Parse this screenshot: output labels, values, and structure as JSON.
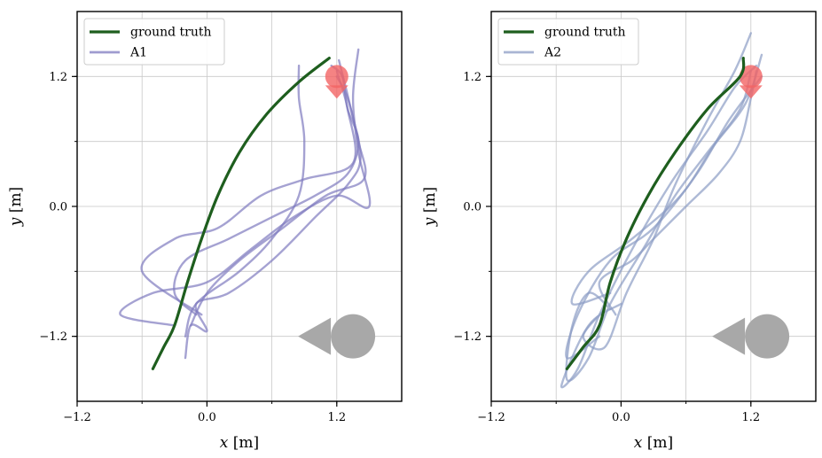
{
  "chart_data": [
    {
      "type": "line",
      "panel": "left",
      "xlabel": {
        "var": "x",
        "unit": "[m]"
      },
      "ylabel": {
        "var": "y",
        "unit": "[m]"
      },
      "xlim": [
        -1.2,
        1.8
      ],
      "ylim": [
        -1.8,
        1.8
      ],
      "xticks": [
        -1.2,
        0.0,
        1.2
      ],
      "xtick_labels": [
        "−1.2",
        "0.0",
        "1.2"
      ],
      "yticks": [
        -1.2,
        0.0,
        1.2
      ],
      "ytick_labels": [
        "−1.2",
        "0.0",
        "1.2"
      ],
      "grid": true,
      "legend": {
        "position": "top-left",
        "entries": [
          "ground truth",
          "A1"
        ]
      },
      "colors": {
        "ground_truth": "#1e5e1e",
        "agent": "#7f7abf",
        "goal": "#f26464",
        "robot": "#a8a8a8"
      },
      "goal_marker": {
        "x": 1.2,
        "y": 1.2
      },
      "robot_marker": {
        "x": 1.35,
        "y": -1.2
      },
      "series": [
        {
          "name": "ground truth",
          "role": "gt",
          "points": [
            [
              -0.5,
              -1.5
            ],
            [
              -0.4,
              -1.3
            ],
            [
              -0.3,
              -1.1
            ],
            [
              -0.18,
              -0.7
            ],
            [
              -0.05,
              -0.3
            ],
            [
              0.1,
              0.1
            ],
            [
              0.3,
              0.5
            ],
            [
              0.55,
              0.85
            ],
            [
              0.85,
              1.15
            ],
            [
              1.13,
              1.37
            ]
          ]
        },
        {
          "name": "A1",
          "role": "agent",
          "points": [
            [
              -0.1,
              -1.0
            ],
            [
              -0.3,
              -0.8
            ],
            [
              -0.2,
              -0.5
            ],
            [
              0.2,
              -0.3
            ],
            [
              0.6,
              -0.1
            ],
            [
              1.0,
              0.1
            ],
            [
              1.3,
              0.3
            ],
            [
              1.4,
              0.6
            ],
            [
              1.3,
              0.9
            ],
            [
              1.25,
              1.2
            ],
            [
              1.15,
              1.3
            ]
          ]
        },
        {
          "name": "A1",
          "role": "agent",
          "points": [
            [
              -0.15,
              -1.1
            ],
            [
              0.0,
              -0.8
            ],
            [
              0.3,
              -0.5
            ],
            [
              0.7,
              -0.2
            ],
            [
              1.1,
              0.1
            ],
            [
              1.45,
              0.25
            ],
            [
              1.4,
              0.6
            ],
            [
              1.3,
              1.0
            ],
            [
              1.2,
              1.2
            ]
          ]
        },
        {
          "name": "A1",
          "role": "agent",
          "points": [
            [
              -0.3,
              -1.1
            ],
            [
              -0.8,
              -1.0
            ],
            [
              -0.5,
              -0.8
            ],
            [
              0.0,
              -0.7
            ],
            [
              0.4,
              -0.4
            ],
            [
              0.8,
              -0.1
            ],
            [
              1.2,
              0.1
            ],
            [
              1.5,
              0.0
            ],
            [
              1.4,
              0.5
            ],
            [
              1.35,
              1.0
            ],
            [
              1.4,
              1.45
            ]
          ]
        },
        {
          "name": "A1",
          "role": "agent",
          "points": [
            [
              -0.05,
              -1.0
            ],
            [
              -0.6,
              -0.6
            ],
            [
              -0.3,
              -0.3
            ],
            [
              0.1,
              -0.2
            ],
            [
              0.5,
              0.1
            ],
            [
              0.9,
              0.25
            ],
            [
              1.35,
              0.4
            ],
            [
              1.3,
              0.9
            ],
            [
              1.2,
              1.25
            ]
          ]
        },
        {
          "name": "A1",
          "role": "agent",
          "points": [
            [
              -0.2,
              -1.4
            ],
            [
              -0.15,
              -1.1
            ],
            [
              0.0,
              -1.15
            ],
            [
              -0.1,
              -0.9
            ],
            [
              0.2,
              -0.8
            ],
            [
              0.6,
              -0.5
            ],
            [
              1.0,
              -0.1
            ],
            [
              1.3,
              0.2
            ],
            [
              1.42,
              0.45
            ],
            [
              1.33,
              0.9
            ],
            [
              1.22,
              1.35
            ]
          ]
        },
        {
          "name": "A1",
          "role": "agent",
          "points": [
            [
              -0.2,
              -1.2
            ],
            [
              -0.1,
              -0.9
            ],
            [
              0.3,
              -0.6
            ],
            [
              0.6,
              -0.3
            ],
            [
              0.85,
              0.1
            ],
            [
              0.9,
              0.6
            ],
            [
              0.85,
              1.0
            ],
            [
              0.85,
              1.3
            ]
          ]
        }
      ]
    },
    {
      "type": "line",
      "panel": "right",
      "xlabel": {
        "var": "x",
        "unit": "[m]"
      },
      "ylabel": {
        "var": "y",
        "unit": "[m]"
      },
      "xlim": [
        -1.2,
        1.8
      ],
      "ylim": [
        -1.8,
        1.8
      ],
      "xticks": [
        -1.2,
        0.0,
        1.2
      ],
      "xtick_labels": [
        "−1.2",
        "0.0",
        "1.2"
      ],
      "yticks": [
        -1.2,
        0.0,
        1.2
      ],
      "ytick_labels": [
        "−1.2",
        "0.0",
        "1.2"
      ],
      "grid": true,
      "legend": {
        "position": "top-left",
        "entries": [
          "ground truth",
          "A2"
        ]
      },
      "colors": {
        "ground_truth": "#1e5e1e",
        "agent": "#8c9cc4",
        "goal": "#f26464",
        "robot": "#a8a8a8"
      },
      "goal_marker": {
        "x": 1.2,
        "y": 1.2
      },
      "robot_marker": {
        "x": 1.35,
        "y": -1.2
      },
      "series": [
        {
          "name": "ground truth",
          "role": "gt",
          "points": [
            [
              -0.5,
              -1.5
            ],
            [
              -0.35,
              -1.3
            ],
            [
              -0.2,
              -1.1
            ],
            [
              -0.1,
              -0.7
            ],
            [
              0.05,
              -0.3
            ],
            [
              0.25,
              0.1
            ],
            [
              0.5,
              0.5
            ],
            [
              0.8,
              0.9
            ],
            [
              1.1,
              1.2
            ],
            [
              1.13,
              1.37
            ]
          ]
        },
        {
          "name": "A2",
          "role": "agent",
          "points": [
            [
              -0.1,
              -0.95
            ],
            [
              -0.3,
              -0.8
            ],
            [
              -0.45,
              -1.1
            ],
            [
              -0.5,
              -1.6
            ],
            [
              -0.3,
              -1.4
            ],
            [
              -0.1,
              -0.9
            ],
            [
              0.2,
              -0.4
            ],
            [
              0.5,
              0.1
            ],
            [
              0.8,
              0.5
            ],
            [
              1.1,
              0.9
            ],
            [
              1.2,
              1.25
            ]
          ]
        },
        {
          "name": "A2",
          "role": "agent",
          "points": [
            [
              -0.2,
              -1.2
            ],
            [
              -0.5,
              -1.4
            ],
            [
              -0.4,
              -1.0
            ],
            [
              -0.1,
              -0.5
            ],
            [
              0.3,
              -0.2
            ],
            [
              0.7,
              0.3
            ],
            [
              1.0,
              0.8
            ],
            [
              1.3,
              1.2
            ]
          ]
        },
        {
          "name": "A2",
          "role": "agent",
          "points": [
            [
              -0.1,
              -0.8
            ],
            [
              -0.45,
              -0.9
            ],
            [
              -0.3,
              -0.6
            ],
            [
              0.1,
              -0.3
            ],
            [
              0.55,
              0.1
            ],
            [
              0.85,
              0.55
            ],
            [
              1.15,
              0.95
            ],
            [
              1.3,
              1.4
            ]
          ]
        },
        {
          "name": "A2",
          "role": "agent",
          "points": [
            [
              0.0,
              -0.9
            ],
            [
              -0.3,
              -1.1
            ],
            [
              -0.55,
              -1.65
            ],
            [
              -0.4,
              -1.5
            ],
            [
              -0.2,
              -1.0
            ],
            [
              0.1,
              -0.4
            ],
            [
              0.45,
              0.2
            ],
            [
              0.8,
              0.7
            ],
            [
              1.05,
              1.1
            ],
            [
              1.25,
              1.3
            ]
          ]
        },
        {
          "name": "A2",
          "role": "agent",
          "points": [
            [
              -0.05,
              -1.0
            ],
            [
              -0.2,
              -0.7
            ],
            [
              0.1,
              -0.5
            ],
            [
              0.3,
              -0.3
            ],
            [
              0.6,
              0.0
            ],
            [
              0.9,
              0.3
            ],
            [
              1.1,
              0.6
            ],
            [
              1.2,
              1.0
            ],
            [
              1.25,
              1.25
            ]
          ]
        },
        {
          "name": "A2",
          "role": "agent",
          "points": [
            [
              -0.15,
              -0.95
            ],
            [
              -0.35,
              -1.2
            ],
            [
              -0.15,
              -1.3
            ],
            [
              0.05,
              -0.8
            ],
            [
              0.3,
              -0.3
            ],
            [
              0.5,
              0.2
            ],
            [
              0.8,
              0.8
            ],
            [
              1.05,
              1.25
            ],
            [
              1.2,
              1.6
            ]
          ]
        }
      ]
    }
  ]
}
